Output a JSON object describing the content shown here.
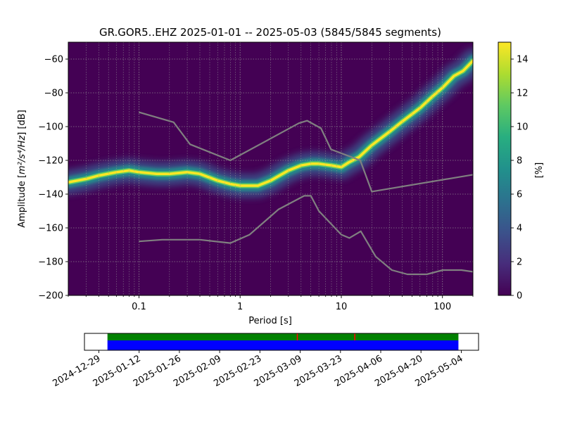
{
  "chart_data": [
    {
      "type": "heatmap",
      "title": "GR.GOR5..EHZ   2025-01-01 -- 2025-05-03  (5845/5845 segments)",
      "xlabel": "Period [s]",
      "ylabel_prefix": "Amplitude [",
      "ylabel_units": "m²/s⁴/Hz",
      "ylabel_suffix": "] [dB]",
      "x_scale": "log",
      "xlim": [
        0.02,
        200
      ],
      "ylim": [
        -200,
        -50
      ],
      "x_ticks": [
        0.1,
        1,
        10,
        100
      ],
      "x_tick_labels": [
        "0.1",
        "1",
        "10",
        "100"
      ],
      "y_ticks": [
        -200,
        -180,
        -160,
        -140,
        -120,
        -100,
        -80,
        -60
      ],
      "y_tick_labels": [
        "−200",
        "−180",
        "−160",
        "−140",
        "−120",
        "−100",
        "−80",
        "−60"
      ],
      "grid": true,
      "colormap": "viridis",
      "background_color": "#440154",
      "colorbar": {
        "label": "[%]",
        "range": [
          0,
          15
        ],
        "ticks": [
          0,
          2,
          4,
          6,
          8,
          10,
          12,
          14
        ],
        "tick_labels": [
          "0",
          "2",
          "4",
          "6",
          "8",
          "10",
          "12",
          "14"
        ]
      },
      "psd_mode": [
        [
          0.02,
          -133
        ],
        [
          0.03,
          -131
        ],
        [
          0.04,
          -129
        ],
        [
          0.06,
          -127
        ],
        [
          0.08,
          -126
        ],
        [
          0.1,
          -127
        ],
        [
          0.15,
          -128
        ],
        [
          0.2,
          -128
        ],
        [
          0.3,
          -127
        ],
        [
          0.4,
          -128
        ],
        [
          0.6,
          -132
        ],
        [
          0.8,
          -134
        ],
        [
          1,
          -135
        ],
        [
          1.5,
          -135
        ],
        [
          2,
          -132
        ],
        [
          3,
          -126
        ],
        [
          4,
          -123
        ],
        [
          5,
          -122
        ],
        [
          6,
          -122
        ],
        [
          8,
          -123
        ],
        [
          10,
          -124
        ],
        [
          12,
          -121
        ],
        [
          15,
          -118
        ],
        [
          20,
          -111
        ],
        [
          30,
          -103
        ],
        [
          40,
          -97
        ],
        [
          60,
          -89
        ],
        [
          80,
          -82
        ],
        [
          100,
          -77
        ],
        [
          130,
          -70
        ],
        [
          160,
          -67
        ],
        [
          200,
          -61
        ]
      ],
      "nlnm": [
        [
          0.1,
          -168
        ],
        [
          0.17,
          -167
        ],
        [
          0.4,
          -167
        ],
        [
          0.8,
          -169
        ],
        [
          1.24,
          -164
        ],
        [
          2.4,
          -149
        ],
        [
          4.3,
          -141
        ],
        [
          5,
          -141
        ],
        [
          6,
          -150
        ],
        [
          10,
          -164
        ],
        [
          12,
          -166
        ],
        [
          15.6,
          -162
        ],
        [
          21.9,
          -177
        ],
        [
          31.6,
          -185
        ],
        [
          45,
          -187.5
        ],
        [
          70,
          -187.5
        ],
        [
          101,
          -185
        ],
        [
          154,
          -185
        ],
        [
          200,
          -186
        ]
      ],
      "nhnm": [
        [
          0.1,
          -91.5
        ],
        [
          0.22,
          -97.4
        ],
        [
          0.32,
          -110.5
        ],
        [
          0.8,
          -120
        ],
        [
          3.8,
          -98
        ],
        [
          4.6,
          -96.5
        ],
        [
          6.3,
          -101
        ],
        [
          7.9,
          -113.5
        ],
        [
          15.4,
          -120
        ],
        [
          20,
          -138.5
        ],
        [
          200,
          -128.5
        ]
      ]
    },
    {
      "type": "timeline",
      "x_tick_labels": [
        "2024-12-29",
        "2025-01-12",
        "2025-01-26",
        "2025-02-09",
        "2025-02-23",
        "2025-03-09",
        "2025-03-23",
        "2025-04-06",
        "2025-04-20",
        "2025-05-04"
      ],
      "x_ticks": [
        "2024-12-29",
        "2025-01-12",
        "2025-01-26",
        "2025-02-09",
        "2025-02-23",
        "2025-03-09",
        "2025-03-23",
        "2025-04-06",
        "2025-04-20",
        "2025-05-04"
      ],
      "xlim": [
        "2024-12-24",
        "2025-05-10"
      ],
      "data_coverage": [
        "2025-01-01",
        "2025-05-03"
      ],
      "psd_coverage": [
        "2025-01-01",
        "2025-05-03"
      ],
      "gaps": [
        "2025-03-08",
        "2025-03-28"
      ],
      "colors": {
        "data": "#0000ff",
        "psd": "#008000",
        "gap": "#ff0000"
      }
    }
  ]
}
